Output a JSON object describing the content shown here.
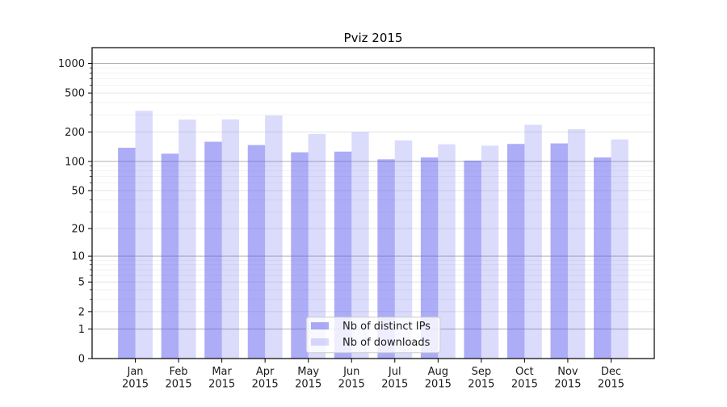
{
  "chart_data": {
    "type": "bar",
    "title": "Pviz 2015",
    "categories": [
      "Jan",
      "Feb",
      "Mar",
      "Apr",
      "May",
      "Jun",
      "Jul",
      "Aug",
      "Sep",
      "Oct",
      "Nov",
      "Dec"
    ],
    "x_axis": {
      "tick_label_line2": "2015"
    },
    "series": [
      {
        "name": "Nb of distinct IPs",
        "color": "rgba(90,90,240,0.5)",
        "values": [
          138,
          120,
          159,
          147,
          124,
          126,
          105,
          110,
          102,
          151,
          153,
          110
        ]
      },
      {
        "name": "Nb of downloads",
        "color": "rgba(90,90,240,0.22)",
        "values": [
          329,
          268,
          269,
          295,
          191,
          200,
          164,
          150,
          145,
          237,
          214,
          168
        ]
      }
    ],
    "y_axis": {
      "scale": "log1p",
      "ticks": [
        0,
        1,
        2,
        5,
        10,
        20,
        50,
        100,
        200,
        500,
        1000
      ],
      "tick_labels": [
        "0",
        "1",
        "2",
        "5",
        "10",
        "20",
        "50",
        "100",
        "200",
        "500",
        "1000"
      ],
      "minor_ticks": [
        3,
        4,
        6,
        7,
        8,
        9,
        30,
        40,
        60,
        70,
        80,
        90,
        300,
        400,
        600,
        700,
        800,
        900
      ],
      "top": 1360
    },
    "legend": {
      "position": "lower center"
    },
    "grid": {
      "decade_color": "#b0b0b0",
      "major_color": "#e4e4e4",
      "minor_color": "#f2f2f2"
    },
    "axis_color": "#000000",
    "text_color": "#1a1a1a",
    "background": "#ffffff"
  }
}
